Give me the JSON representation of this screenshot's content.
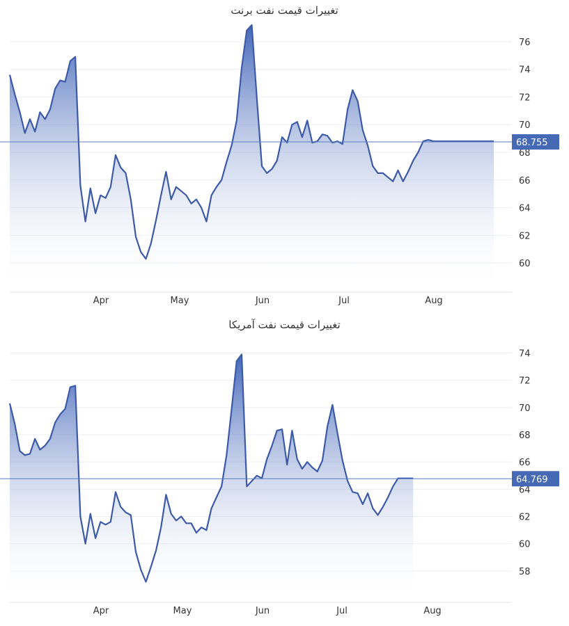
{
  "chart_data": [
    {
      "type": "area",
      "title": "تغییرات قیمت نفت برنت",
      "x_tick_labels": [
        "Apr",
        "May",
        "Jun",
        "Jul",
        "Aug"
      ],
      "y_ticks": [
        60,
        62,
        64,
        66,
        68,
        70,
        72,
        74,
        76
      ],
      "ylim": [
        58.2,
        77.5
      ],
      "grid": true,
      "current_value": 68.755,
      "current_label": "68.755",
      "series": [
        {
          "x": [
            0,
            2,
            4,
            6,
            8,
            10,
            12,
            14,
            16,
            18,
            20,
            22,
            24,
            26,
            28,
            30,
            32,
            34,
            36,
            38,
            40,
            42,
            44,
            46,
            48,
            50,
            52,
            54,
            56,
            58,
            60,
            62,
            64,
            66,
            68,
            70,
            72,
            74,
            76,
            78,
            80,
            82,
            84,
            86,
            88,
            90,
            92,
            94,
            96,
            98,
            100,
            102,
            104,
            106,
            108,
            110,
            112,
            114,
            116,
            118,
            120,
            122,
            124,
            126,
            128,
            130,
            132,
            134,
            136,
            138,
            140,
            142,
            144,
            146,
            148,
            150,
            152,
            154,
            156,
            158,
            160,
            162,
            164,
            166,
            168,
            170,
            172,
            174,
            176,
            178,
            180,
            182,
            184,
            186,
            188,
            190,
            192
          ],
          "y": [
            73.6,
            72.2,
            70.9,
            69.4,
            70.4,
            69.5,
            70.9,
            70.4,
            71.1,
            72.6,
            73.2,
            73.1,
            74.6,
            74.9,
            65.6,
            63.0,
            65.4,
            63.6,
            64.9,
            64.7,
            65.5,
            67.8,
            66.9,
            66.5,
            64.6,
            61.9,
            60.8,
            60.3,
            61.4,
            63.1,
            64.9,
            66.6,
            64.6,
            65.5,
            65.2,
            64.9,
            64.3,
            64.6,
            64.0,
            63.0,
            64.9,
            65.5,
            66.0,
            67.3,
            68.5,
            70.3,
            74.1,
            76.8,
            77.2,
            71.9,
            67.0,
            66.5,
            66.8,
            67.4,
            69.1,
            68.7,
            70.0,
            70.2,
            69.1,
            70.3,
            68.7,
            68.8,
            69.3,
            69.2,
            68.7,
            68.8,
            68.6,
            71.1,
            72.5,
            71.7,
            69.6,
            68.5,
            67.0,
            66.5,
            66.5,
            66.2,
            65.9,
            66.7,
            65.9,
            66.6,
            67.4,
            68.0,
            68.8,
            68.9,
            68.8,
            68.8,
            68.8,
            68.8,
            68.8,
            68.8,
            68.8,
            68.8,
            68.8,
            68.8,
            68.8,
            68.8,
            68.8
          ]
        }
      ]
    },
    {
      "type": "area",
      "title": "تغییرات قیمت نفت آمریکا",
      "x_tick_labels": [
        "Apr",
        "May",
        "Jun",
        "Jul",
        "Aug"
      ],
      "y_ticks": [
        58,
        60,
        62,
        64,
        66,
        68,
        70,
        72,
        74
      ],
      "ylim": [
        56.0,
        75.2
      ],
      "grid": true,
      "current_value": 64.769,
      "current_label": "64.769",
      "series": [
        {
          "x": [
            0,
            2,
            4,
            6,
            8,
            10,
            12,
            14,
            16,
            18,
            20,
            22,
            24,
            26,
            28,
            30,
            32,
            34,
            36,
            38,
            40,
            42,
            44,
            46,
            48,
            50,
            52,
            54,
            56,
            58,
            60,
            62,
            64,
            66,
            68,
            70,
            72,
            74,
            76,
            78,
            80,
            82,
            84,
            86,
            88,
            90,
            92,
            94,
            96,
            98,
            100,
            102,
            104,
            106,
            108,
            110,
            112,
            114,
            116,
            118,
            120,
            122,
            124,
            126,
            128,
            130,
            132,
            134,
            136,
            138,
            140,
            142,
            144,
            146,
            148,
            150,
            152,
            154,
            156,
            158,
            160
          ],
          "y": [
            70.3,
            68.8,
            66.8,
            66.5,
            66.6,
            67.7,
            66.9,
            67.2,
            67.7,
            68.9,
            69.5,
            69.9,
            71.5,
            71.6,
            62.0,
            60.0,
            62.2,
            60.4,
            61.6,
            61.4,
            61.6,
            63.8,
            62.7,
            62.3,
            62.1,
            59.4,
            58.1,
            57.2,
            58.3,
            59.5,
            61.2,
            63.6,
            62.2,
            61.7,
            62.0,
            61.5,
            61.5,
            60.8,
            61.2,
            61.0,
            62.6,
            63.4,
            64.2,
            66.5,
            69.9,
            73.4,
            73.9,
            64.2,
            64.6,
            65.0,
            64.8,
            66.2,
            67.2,
            68.3,
            68.4,
            65.8,
            68.3,
            66.2,
            65.5,
            66.0,
            65.6,
            65.3,
            66.1,
            68.6,
            70.2,
            68.1,
            66.1,
            64.6,
            63.8,
            63.7,
            62.9,
            63.7,
            62.6,
            62.1,
            62.7,
            63.4,
            64.2,
            64.8,
            64.8,
            64.8,
            64.8
          ]
        }
      ]
    }
  ]
}
